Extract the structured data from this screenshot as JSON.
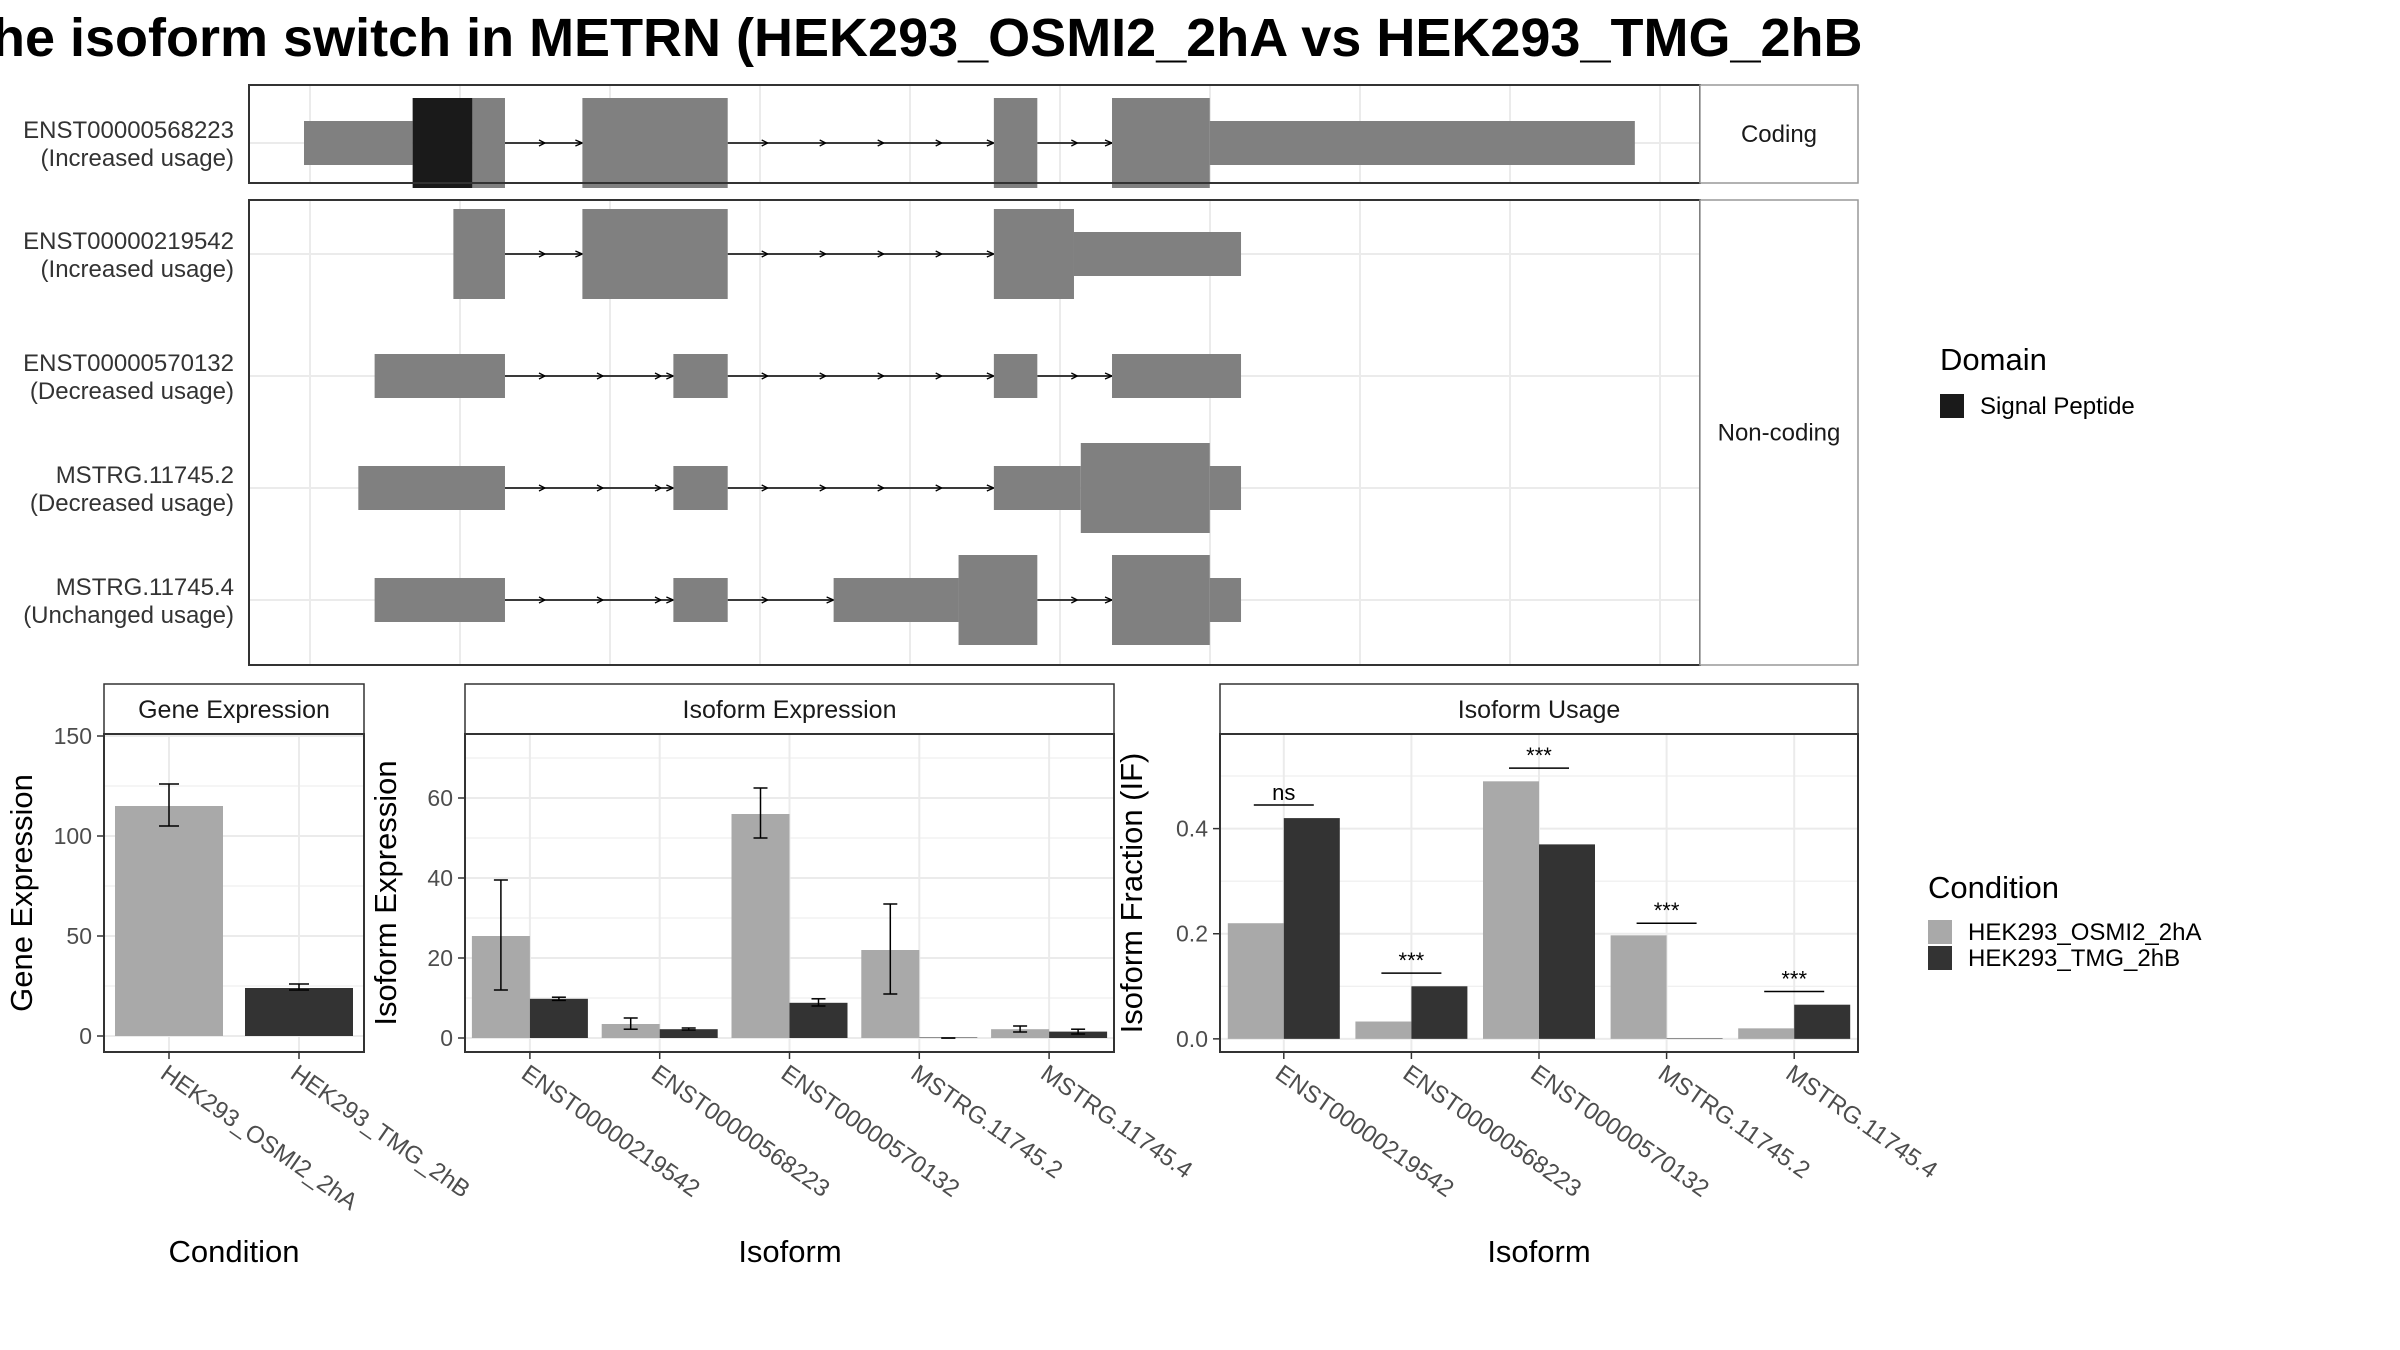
{
  "title": "he isoform switch in METRN (HEK293_OSMI2_2hA vs HEK293_TMG_2hB",
  "colors": {
    "exon": "#808080",
    "signal_peptide": "#1a1a1a",
    "cond_a": "#a9a9a9",
    "cond_b": "#333333",
    "grid": "#ebebeb",
    "strip_bg": "#ffffff"
  },
  "structure": {
    "x_axis_range": [
      0,
      100
    ],
    "panels": [
      {
        "strip": "Coding",
        "rows": [
          {
            "id": "ENST00000568223",
            "usage": "(Increased usage)",
            "exons": [
              {
                "start": 0,
                "end": 8,
                "h": "thin"
              },
              {
                "start": 8,
                "end": 12.4,
                "h": "thick",
                "domain": "Signal Peptide"
              },
              {
                "start": 12.4,
                "end": 14.8,
                "h": "thick"
              },
              {
                "start": 20.5,
                "end": 31.2,
                "h": "thick"
              },
              {
                "start": 50.8,
                "end": 54,
                "h": "thick"
              },
              {
                "start": 59.5,
                "end": 66.7,
                "h": "thick"
              },
              {
                "start": 66.7,
                "end": 98,
                "h": "thin"
              }
            ]
          }
        ]
      },
      {
        "strip": "Non-coding",
        "rows": [
          {
            "id": "ENST00000219542",
            "usage": "(Increased usage)",
            "exons": [
              {
                "start": 11,
                "end": 14.8,
                "h": "thick"
              },
              {
                "start": 20.5,
                "end": 31.2,
                "h": "thick"
              },
              {
                "start": 50.8,
                "end": 56.7,
                "h": "thick"
              },
              {
                "start": 56.7,
                "end": 69,
                "h": "thin"
              }
            ]
          },
          {
            "id": "ENST00000570132",
            "usage": "(Decreased usage)",
            "exons": [
              {
                "start": 5.2,
                "end": 14.8,
                "h": "thin"
              },
              {
                "start": 27.2,
                "end": 31.2,
                "h": "thin"
              },
              {
                "start": 50.8,
                "end": 54,
                "h": "thin"
              },
              {
                "start": 59.5,
                "end": 69,
                "h": "thin"
              }
            ]
          },
          {
            "id": "MSTRG.11745.2",
            "usage": "(Decreased usage)",
            "exons": [
              {
                "start": 4,
                "end": 14.8,
                "h": "thin"
              },
              {
                "start": 27.2,
                "end": 31.2,
                "h": "thin"
              },
              {
                "start": 50.8,
                "end": 57.2,
                "h": "thin"
              },
              {
                "start": 57.2,
                "end": 66.7,
                "h": "thick"
              },
              {
                "start": 66.7,
                "end": 69,
                "h": "thin"
              }
            ]
          },
          {
            "id": "MSTRG.11745.4",
            "usage": "(Unchanged usage)",
            "exons": [
              {
                "start": 5.2,
                "end": 14.8,
                "h": "thin"
              },
              {
                "start": 27.2,
                "end": 31.2,
                "h": "thin"
              },
              {
                "start": 39,
                "end": 48.2,
                "h": "thin"
              },
              {
                "start": 48.2,
                "end": 54,
                "h": "thick"
              },
              {
                "start": 59.5,
                "end": 66.7,
                "h": "thick"
              },
              {
                "start": 66.7,
                "end": 69,
                "h": "thin"
              }
            ]
          }
        ]
      }
    ]
  },
  "legend_domain": {
    "title": "Domain",
    "items": [
      {
        "label": "Signal Peptide",
        "color": "#1a1a1a"
      }
    ]
  },
  "legend_condition": {
    "title": "Condition",
    "items": [
      {
        "label": "HEK293_OSMI2_2hA",
        "color": "#a9a9a9"
      },
      {
        "label": "HEK293_TMG_2hB",
        "color": "#333333"
      }
    ]
  },
  "chart_data": [
    {
      "type": "bar",
      "title": "Gene Expression",
      "xlabel": "Condition",
      "ylabel": "Gene Expression",
      "ylim": [
        -8,
        151
      ],
      "yticks": [
        0,
        50,
        100,
        150
      ],
      "categories": [
        "HEK293_OSMI2_2hA",
        "HEK293_TMG_2hB"
      ],
      "bars": [
        {
          "value": 115,
          "err": [
            105,
            126
          ],
          "color": "#a9a9a9"
        },
        {
          "value": 24,
          "err": [
            23,
            26
          ],
          "color": "#333333"
        }
      ]
    },
    {
      "type": "bar",
      "title": "Isoform Expression",
      "xlabel": "Isoform",
      "ylabel": "Isoform Expression",
      "ylim": [
        -3.5,
        76
      ],
      "yticks": [
        0,
        20,
        40,
        60
      ],
      "categories": [
        "ENST00000219542",
        "ENST00000568223",
        "ENST00000570132",
        "MSTRG.11745.2",
        "MSTRG.11745.4"
      ],
      "series": [
        {
          "name": "HEK293_OSMI2_2hA",
          "color": "#a9a9a9",
          "values": [
            25.5,
            3.5,
            56,
            22,
            2.2
          ],
          "err": [
            [
              12,
              39.5
            ],
            [
              2.2,
              5
            ],
            [
              50,
              62.5
            ],
            [
              11,
              33.5
            ],
            [
              1.5,
              3
            ]
          ]
        },
        {
          "name": "HEK293_TMG_2hB",
          "color": "#333333",
          "values": [
            9.8,
            2.2,
            8.8,
            0,
            1.6
          ],
          "err": [
            [
              9.4,
              10.2
            ],
            [
              2,
              2.5
            ],
            [
              8,
              9.8
            ],
            [
              0,
              0
            ],
            [
              1,
              2.2
            ]
          ]
        }
      ]
    },
    {
      "type": "bar",
      "title": "Isoform Usage",
      "xlabel": "Isoform",
      "ylabel": "Isoform Fraction (IF)",
      "ylim": [
        -0.025,
        0.58
      ],
      "yticks": [
        0.0,
        0.2,
        0.4
      ],
      "ytick_labels": [
        "0.0",
        "0.2",
        "0.4"
      ],
      "categories": [
        "ENST00000219542",
        "ENST00000568223",
        "ENST00000570132",
        "MSTRG.11745.2",
        "MSTRG.11745.4"
      ],
      "series": [
        {
          "name": "HEK293_OSMI2_2hA",
          "color": "#a9a9a9",
          "values": [
            0.22,
            0.033,
            0.49,
            0.197,
            0.02
          ]
        },
        {
          "name": "HEK293_TMG_2hB",
          "color": "#333333",
          "values": [
            0.42,
            0.1,
            0.37,
            0,
            0.065
          ]
        }
      ],
      "significance": [
        {
          "label": "ns",
          "y": 0.445
        },
        {
          "label": "***",
          "y": 0.125
        },
        {
          "label": "***",
          "y": 0.515
        },
        {
          "label": "***",
          "y": 0.22
        },
        {
          "label": "***",
          "y": 0.09
        }
      ]
    }
  ]
}
